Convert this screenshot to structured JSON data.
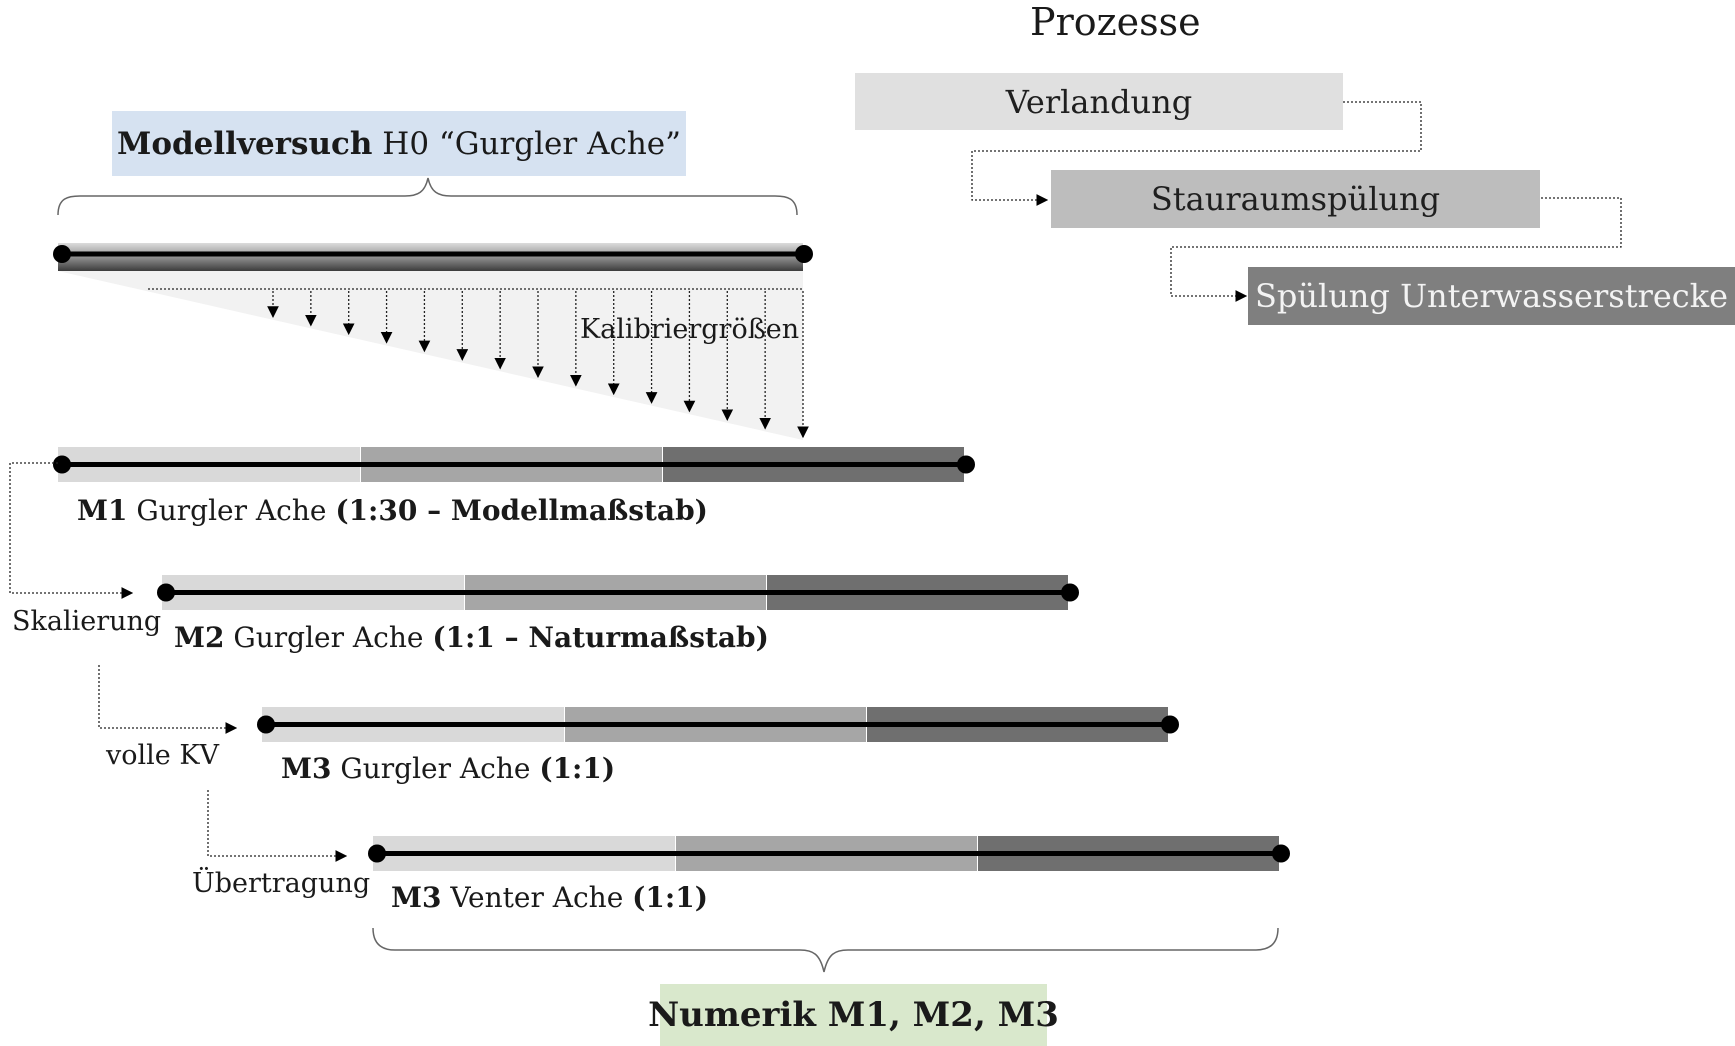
{
  "heading": "Prozesse",
  "modellversuch": {
    "bold": "Modellversuch",
    "rest": "H0 “Gurgler Ache”"
  },
  "calibration_label": "Kalibriergrößen",
  "processes": [
    {
      "label": "Verlandung"
    },
    {
      "label": "Stauraumspülung"
    },
    {
      "label": "Spülung Unterwasserstrecke"
    }
  ],
  "models": [
    {
      "id": "M1",
      "name": "Gurgler Ache",
      "scale": "(1:30 – Modellmaßstab)"
    },
    {
      "id": "M2",
      "name": "Gurgler Ache",
      "scale": "(1:1 – Naturmaßstab)"
    },
    {
      "id": "M3",
      "name": "Gurgler Ache",
      "scale": "(1:1)"
    },
    {
      "id": "M3",
      "name": "Venter Ache",
      "scale": "(1:1)"
    }
  ],
  "transitions": [
    {
      "label": "Skalierung"
    },
    {
      "label": "volle KV"
    },
    {
      "label": "Übertragung"
    }
  ],
  "numerik": "Numerik M1, M2, M3",
  "colors": {
    "title_box": "#d6e2f1",
    "numerik_box": "#d9e8cc",
    "segment_light": "#d9d9d9",
    "segment_mid": "#a6a6a6",
    "segment_dark": "#6f6f6f"
  }
}
